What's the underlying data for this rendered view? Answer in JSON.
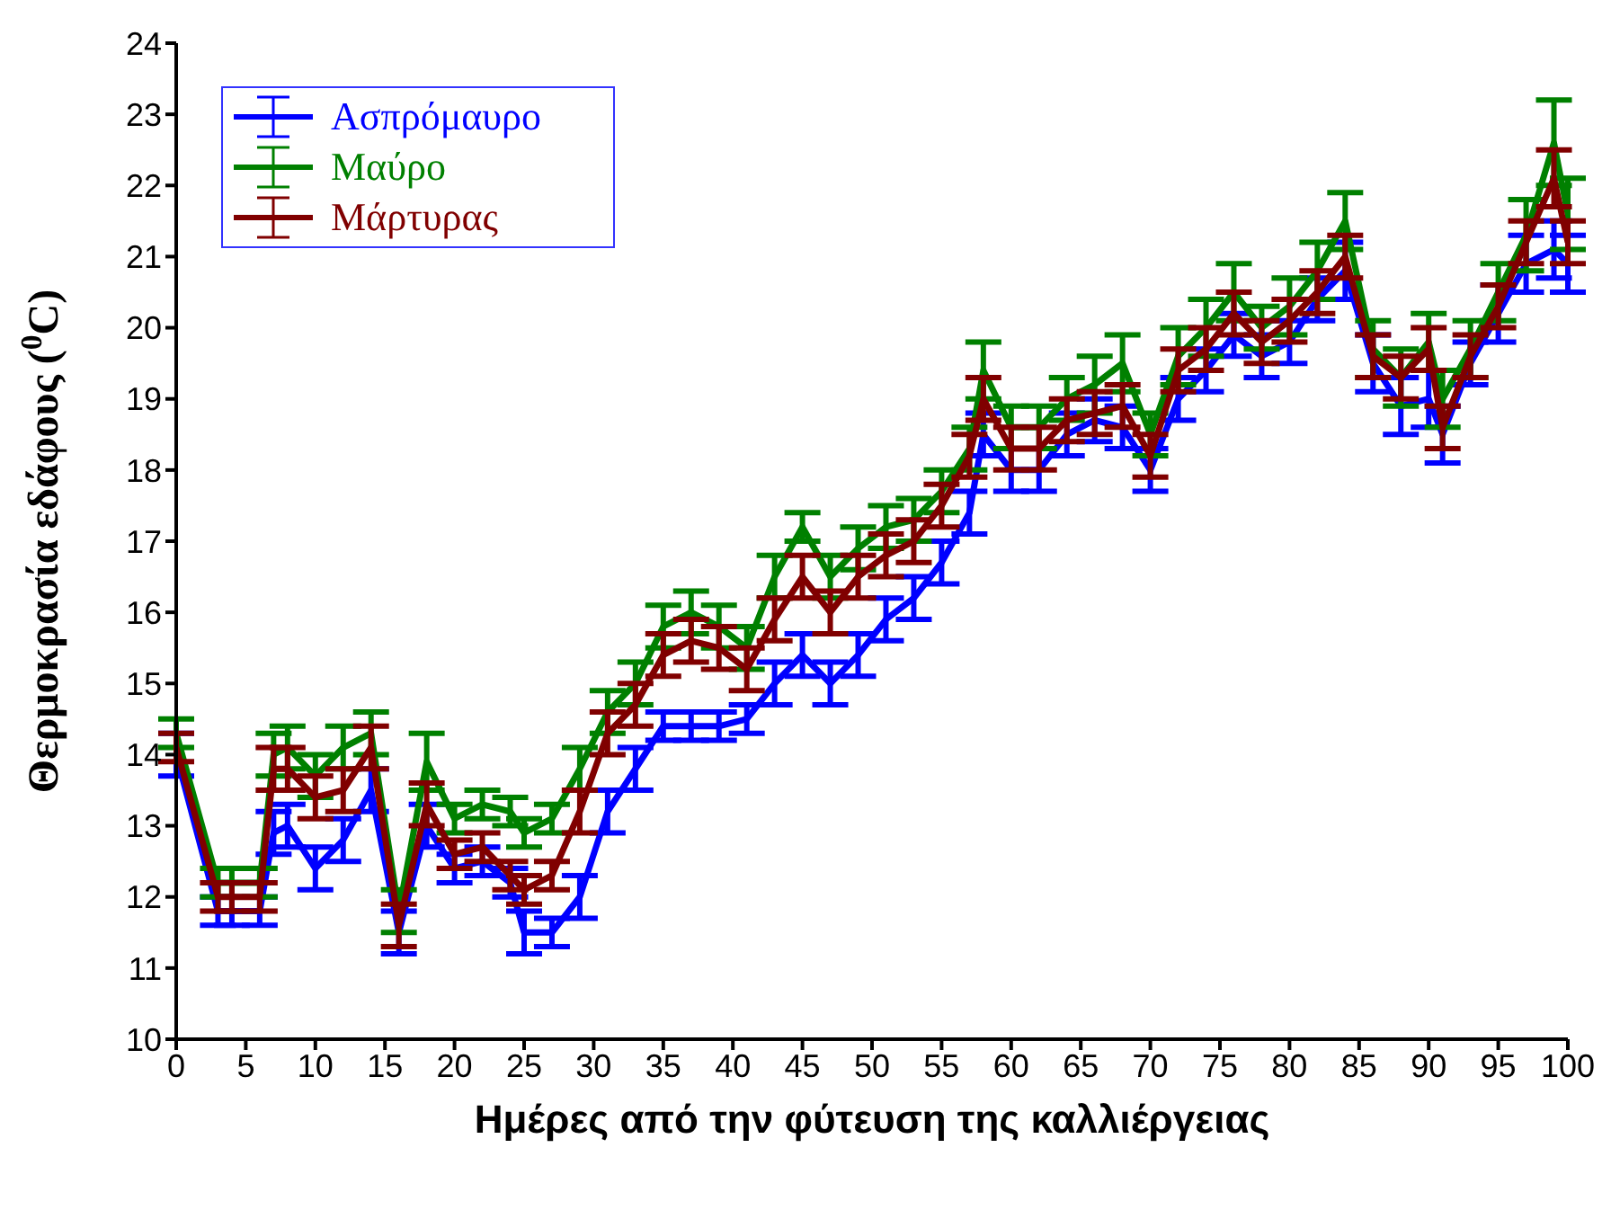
{
  "chart_data": {
    "type": "line",
    "xlabel": "Ημέρες από την φύτευση της καλλιέργειας",
    "ylabel": "Θερμοκρασία  εδάφους  ($^{0}$C)",
    "x": [
      0,
      3,
      4,
      6,
      7,
      8,
      10,
      12,
      14,
      16,
      18,
      20,
      22,
      24,
      25,
      27,
      29,
      31,
      33,
      35,
      37,
      39,
      41,
      43,
      45,
      47,
      49,
      51,
      53,
      55,
      57,
      58,
      60,
      62,
      64,
      66,
      68,
      70,
      72,
      74,
      76,
      78,
      80,
      82,
      84,
      86,
      88,
      90,
      91,
      93,
      95,
      97,
      99,
      100
    ],
    "series": [
      {
        "name": "Ασπρόμαυρο",
        "color": "#0000ff",
        "values": [
          14.0,
          11.8,
          11.8,
          11.8,
          12.9,
          13.0,
          12.4,
          12.8,
          13.5,
          11.5,
          13.0,
          12.4,
          12.5,
          12.2,
          11.5,
          11.5,
          12.0,
          13.2,
          13.8,
          14.4,
          14.4,
          14.4,
          14.5,
          15.0,
          15.4,
          15.0,
          15.4,
          15.9,
          16.2,
          16.7,
          17.4,
          18.5,
          18.0,
          18.0,
          18.5,
          18.7,
          18.6,
          18.0,
          19.0,
          19.4,
          19.9,
          19.6,
          19.8,
          20.4,
          20.8,
          19.5,
          18.9,
          19.0,
          18.5,
          19.5,
          20.2,
          20.9,
          21.1,
          20.9
        ],
        "errors": [
          0.3,
          0.2,
          0.2,
          0.2,
          0.3,
          0.3,
          0.3,
          0.3,
          0.3,
          0.3,
          0.3,
          0.2,
          0.2,
          0.2,
          0.3,
          0.2,
          0.3,
          0.3,
          0.3,
          0.2,
          0.2,
          0.2,
          0.2,
          0.3,
          0.3,
          0.3,
          0.3,
          0.3,
          0.3,
          0.3,
          0.3,
          0.3,
          0.3,
          0.3,
          0.3,
          0.3,
          0.3,
          0.3,
          0.3,
          0.3,
          0.3,
          0.3,
          0.3,
          0.3,
          0.4,
          0.4,
          0.4,
          0.4,
          0.4,
          0.3,
          0.4,
          0.4,
          0.4,
          0.4
        ]
      },
      {
        "name": "Μαύρο",
        "color": "#008000",
        "values": [
          14.3,
          12.2,
          12.2,
          12.2,
          14.0,
          14.1,
          13.7,
          14.1,
          14.3,
          11.8,
          13.9,
          13.1,
          13.3,
          13.2,
          12.9,
          13.1,
          13.8,
          14.6,
          15.0,
          15.8,
          16.0,
          15.8,
          15.5,
          16.5,
          17.2,
          16.5,
          16.9,
          17.2,
          17.3,
          17.7,
          18.3,
          19.4,
          18.6,
          18.6,
          19.0,
          19.2,
          19.5,
          18.5,
          19.6,
          20.0,
          20.5,
          20.0,
          20.3,
          20.8,
          21.5,
          19.7,
          19.3,
          19.8,
          19.0,
          19.7,
          20.5,
          21.3,
          22.6,
          21.6
        ],
        "errors": [
          0.2,
          0.2,
          0.2,
          0.2,
          0.3,
          0.3,
          0.3,
          0.3,
          0.3,
          0.3,
          0.4,
          0.2,
          0.2,
          0.2,
          0.2,
          0.2,
          0.3,
          0.3,
          0.3,
          0.3,
          0.3,
          0.3,
          0.3,
          0.3,
          0.2,
          0.3,
          0.3,
          0.3,
          0.3,
          0.3,
          0.3,
          0.4,
          0.3,
          0.3,
          0.3,
          0.4,
          0.4,
          0.3,
          0.4,
          0.4,
          0.4,
          0.3,
          0.4,
          0.4,
          0.4,
          0.4,
          0.4,
          0.4,
          0.4,
          0.4,
          0.4,
          0.5,
          0.6,
          0.5
        ]
      },
      {
        "name": "Μάρτυρας",
        "color": "#800000",
        "values": [
          14.1,
          12.0,
          12.0,
          12.0,
          13.8,
          13.8,
          13.4,
          13.5,
          14.1,
          11.6,
          13.3,
          12.6,
          12.7,
          12.3,
          12.1,
          12.3,
          13.2,
          14.3,
          14.7,
          15.4,
          15.6,
          15.5,
          15.2,
          15.9,
          16.5,
          16.0,
          16.5,
          16.8,
          17.0,
          17.5,
          18.2,
          19.0,
          18.3,
          18.3,
          18.7,
          18.8,
          18.9,
          18.2,
          19.4,
          19.7,
          20.2,
          19.8,
          20.1,
          20.5,
          21.0,
          19.6,
          19.3,
          19.7,
          18.6,
          19.6,
          20.3,
          21.2,
          22.1,
          21.2
        ],
        "errors": [
          0.2,
          0.2,
          0.2,
          0.2,
          0.3,
          0.3,
          0.3,
          0.3,
          0.3,
          0.3,
          0.3,
          0.2,
          0.2,
          0.2,
          0.2,
          0.2,
          0.3,
          0.3,
          0.3,
          0.3,
          0.3,
          0.3,
          0.3,
          0.3,
          0.3,
          0.3,
          0.3,
          0.3,
          0.3,
          0.3,
          0.3,
          0.3,
          0.3,
          0.3,
          0.3,
          0.3,
          0.3,
          0.3,
          0.3,
          0.3,
          0.3,
          0.3,
          0.3,
          0.3,
          0.3,
          0.3,
          0.3,
          0.3,
          0.3,
          0.3,
          0.3,
          0.3,
          0.4,
          0.3
        ]
      }
    ],
    "xlim": [
      0,
      100
    ],
    "xticks": [
      0,
      5,
      10,
      15,
      20,
      25,
      30,
      35,
      40,
      45,
      50,
      55,
      60,
      65,
      70,
      75,
      80,
      85,
      90,
      95,
      100
    ],
    "ylim": [
      10,
      24
    ],
    "yticks": [
      10,
      11,
      12,
      13,
      14,
      15,
      16,
      17,
      18,
      19,
      20,
      21,
      22,
      23,
      24
    ],
    "grid": false,
    "legend": "top left",
    "marker": "none",
    "line_style": "solid"
  }
}
